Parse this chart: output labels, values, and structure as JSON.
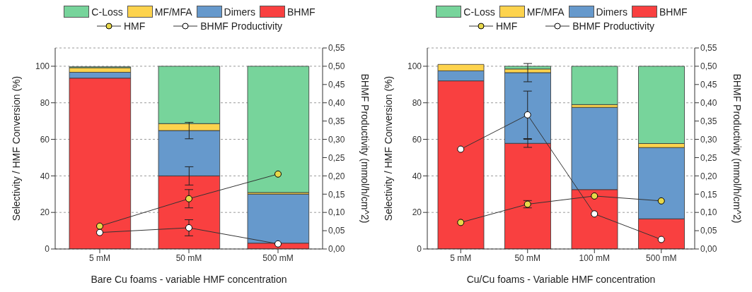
{
  "chart_data": [
    {
      "type": "bar",
      "stacked": true,
      "xlabel": "Bare Cu foams - variable HMF concentration",
      "ylabel": "Selectivity / HMF Conversion (%)",
      "y2label": "BHMF Productivity (mmol/h/cm^2)",
      "categories": [
        "5 mM",
        "50 mM",
        "500 mM"
      ],
      "series": [
        {
          "name": "BHMF",
          "color": "#f94040",
          "values": [
            93.5,
            40,
            3.2
          ],
          "errors": [
            null,
            5,
            null
          ]
        },
        {
          "name": "Dimers",
          "color": "#6699cc",
          "values": [
            3.2,
            24.8,
            26.8
          ],
          "errors": [
            null,
            4.5,
            null
          ]
        },
        {
          "name": "MF/MFA",
          "color": "#fdd34d",
          "values": [
            2.5,
            3.8,
            0.9
          ]
        },
        {
          "name": "C-Loss",
          "color": "#77d49b",
          "values": [
            0.5,
            31.4,
            69.1
          ]
        },
        {
          "name": "HMF",
          "type": "line",
          "color": "#e8d84a",
          "marker": "circle",
          "values": [
            12.5,
            27.5,
            41
          ],
          "errors": [
            null,
            5,
            null
          ]
        },
        {
          "name": "BHMF Productivity",
          "type": "line",
          "axis": "y2",
          "color": "#ffffff",
          "marker": "circle",
          "values": [
            0.045,
            0.058,
            0.014
          ],
          "errors": [
            null,
            0.022,
            null
          ]
        }
      ],
      "ylim": [
        0,
        110
      ],
      "yticks": [
        0,
        20,
        40,
        60,
        80,
        100
      ],
      "y2lim": [
        0,
        0.55
      ],
      "y2ticks": [
        {
          "value": 0,
          "label": "0,00"
        },
        {
          "value": 0.05,
          "label": "0,05"
        },
        {
          "value": 0.1,
          "label": "0,10"
        },
        {
          "value": 0.15,
          "label": "0,15"
        },
        {
          "value": 0.2,
          "label": "0,20"
        },
        {
          "value": 0.25,
          "label": "0,25"
        },
        {
          "value": 0.3,
          "label": "0,30"
        },
        {
          "value": 0.35,
          "label": "0,35"
        },
        {
          "value": 0.4,
          "label": "0,40"
        },
        {
          "value": 0.45,
          "label": "0,45"
        },
        {
          "value": 0.5,
          "label": "0,50"
        },
        {
          "value": 0.55,
          "label": "0,55"
        }
      ],
      "grid": "y",
      "legend": "top"
    },
    {
      "type": "bar",
      "stacked": true,
      "xlabel": "Cu/Cu foams - Variable HMF concentration",
      "ylabel": "Selectivity / HMF Conversion (%)",
      "y2label": "BHMF Productivity (mmol/h/cm^2)",
      "categories": [
        "5 mM",
        "50 mM",
        "100 mM",
        "500 mM"
      ],
      "series": [
        {
          "name": "BHMF",
          "color": "#f94040",
          "values": [
            92,
            57.8,
            32.5,
            16.5
          ],
          "errors": [
            null,
            2.2,
            null,
            null
          ]
        },
        {
          "name": "Dimers",
          "color": "#6699cc",
          "values": [
            5.5,
            38.7,
            45,
            39
          ],
          "errors": [
            null,
            5,
            null,
            null
          ]
        },
        {
          "name": "MF/MFA",
          "color": "#fdd34d",
          "values": [
            3.5,
            2,
            1.5,
            2.2
          ]
        },
        {
          "name": "C-Loss",
          "color": "#77d49b",
          "values": [
            0,
            1.5,
            21,
            42.3
          ]
        },
        {
          "name": "HMF",
          "type": "line",
          "color": "#e8d84a",
          "marker": "circle",
          "values": [
            14.5,
            24.5,
            29,
            26.3
          ],
          "errors": [
            null,
            2,
            null,
            null
          ]
        },
        {
          "name": "BHMF Productivity",
          "type": "line",
          "axis": "y2",
          "color": "#ffffff",
          "marker": "circle",
          "values": [
            0.273,
            0.367,
            0.096,
            0.026
          ],
          "errors": [
            null,
            0.065,
            null,
            null
          ]
        }
      ],
      "ylim": [
        0,
        110
      ],
      "yticks": [
        0,
        20,
        40,
        60,
        80,
        100
      ],
      "y2lim": [
        0,
        0.55
      ],
      "y2ticks": [
        {
          "value": 0,
          "label": "0,00"
        },
        {
          "value": 0.05,
          "label": "0,05"
        },
        {
          "value": 0.1,
          "label": "0,10"
        },
        {
          "value": 0.15,
          "label": "0,15"
        },
        {
          "value": 0.2,
          "label": "0,20"
        },
        {
          "value": 0.25,
          "label": "0,25"
        },
        {
          "value": 0.3,
          "label": "0,30"
        },
        {
          "value": 0.35,
          "label": "0,35"
        },
        {
          "value": 0.4,
          "label": "0,40"
        },
        {
          "value": 0.45,
          "label": "0,45"
        },
        {
          "value": 0.5,
          "label": "0,50"
        },
        {
          "value": 0.55,
          "label": "0,55"
        }
      ],
      "grid": "y",
      "legend": "top"
    }
  ]
}
